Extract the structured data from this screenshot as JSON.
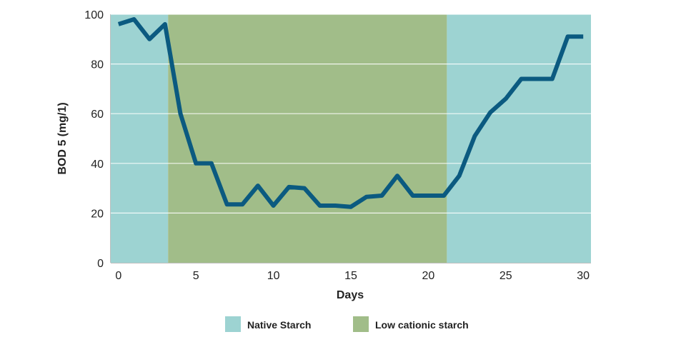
{
  "chart_data": {
    "type": "line",
    "title": "",
    "xlabel": "Days",
    "ylabel": "BOD 5 (mg/1)",
    "xlim": [
      -0.5,
      30.5
    ],
    "ylim": [
      0,
      100
    ],
    "x_ticks": [
      0,
      5,
      10,
      15,
      20,
      25,
      30
    ],
    "y_ticks": [
      0,
      20,
      40,
      60,
      80,
      100
    ],
    "grid": "horizontal",
    "legend_position": "bottom",
    "regions": [
      {
        "name": "Native Starch",
        "start": -0.5,
        "end": 3.2,
        "color": "#9dd3d2"
      },
      {
        "name": "Low cationic starch",
        "start": 3.2,
        "end": 21.2,
        "color": "#a1bd89"
      },
      {
        "name": "Native Starch",
        "start": 21.2,
        "end": 30.5,
        "color": "#9dd3d2"
      }
    ],
    "legend": [
      {
        "label": "Native Starch",
        "color": "#9dd3d2"
      },
      {
        "label": "Low cationic starch",
        "color": "#a1bd89"
      }
    ],
    "series": [
      {
        "color": "#0b5a80",
        "x": [
          0,
          1,
          2,
          3,
          4,
          5,
          6,
          7,
          8,
          9,
          10,
          11,
          12,
          13,
          14,
          15,
          16,
          17,
          18,
          19,
          20,
          21,
          22,
          23,
          24,
          25,
          26,
          27,
          28,
          29,
          30
        ],
        "y": [
          96,
          98,
          90,
          96,
          60,
          40,
          40,
          23.5,
          23.5,
          31,
          23,
          30.5,
          30,
          23,
          23,
          22.5,
          26.5,
          27,
          35,
          27,
          27,
          27,
          35,
          51,
          60.5,
          66,
          74,
          74,
          74,
          91,
          91
        ]
      }
    ]
  }
}
